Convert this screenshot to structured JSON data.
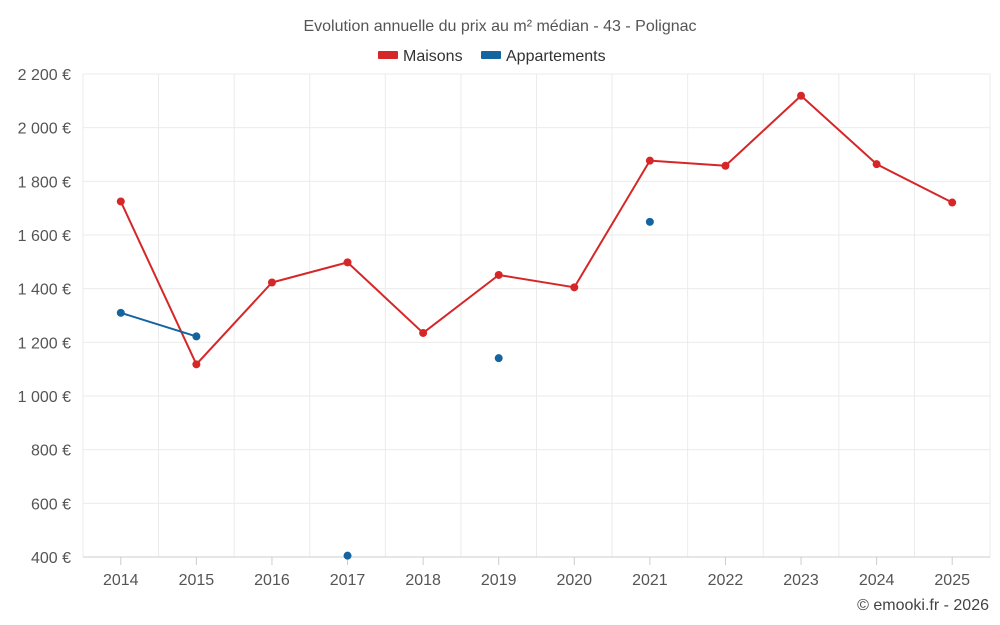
{
  "chart_data": {
    "type": "line",
    "title": "Evolution annuelle du prix au m² médian - 43 - Polignac",
    "categories": [
      "2014",
      "2015",
      "2016",
      "2017",
      "2018",
      "2019",
      "2020",
      "2021",
      "2022",
      "2023",
      "2024",
      "2025"
    ],
    "ylim": [
      400,
      2200
    ],
    "yticks": [
      400,
      600,
      800,
      1000,
      1200,
      1400,
      1600,
      1800,
      2000,
      2200
    ],
    "ytick_labels": [
      "400 €",
      "600 €",
      "800 €",
      "1 000 €",
      "1 200 €",
      "1 400 €",
      "1 600 €",
      "1 800 €",
      "2 000 €",
      "2 200 €"
    ],
    "grid": true,
    "legend_position": "top-center",
    "series": [
      {
        "name": "Maisons",
        "color": "#d62728",
        "values": [
          1725,
          1118,
          1423,
          1498,
          1235,
          1451,
          1405,
          1877,
          1858,
          2119,
          1864,
          1721
        ]
      },
      {
        "name": "Appartements",
        "color": "#1464a0",
        "values": [
          1310,
          1222,
          null,
          405,
          null,
          1141,
          null,
          1649,
          null,
          null,
          null,
          null
        ]
      }
    ],
    "credit": "© emooki.fr - 2026"
  }
}
